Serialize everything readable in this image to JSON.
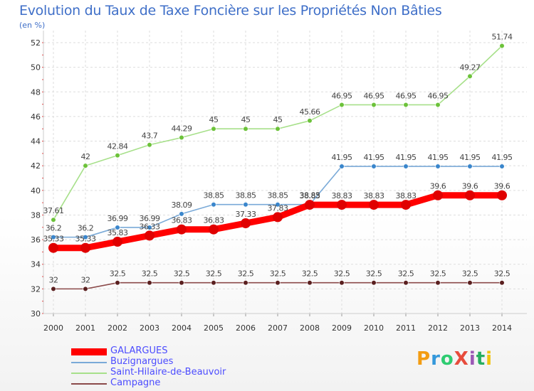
{
  "title": "Evolution du Taux de Taxe Foncière sur les Propriétés Non Bâties",
  "unit_label": "(en %)",
  "logo": {
    "text": "ProXiti",
    "letters": [
      "P",
      "r",
      "o",
      "X",
      "i",
      "t",
      "i"
    ],
    "colors": [
      "#f39c12",
      "#3498db",
      "#2ecc71",
      "#e74c3c",
      "#9b59b6",
      "#27ae60",
      "#f1c40f"
    ]
  },
  "chart_data": {
    "type": "line",
    "title": "Evolution du Taux de Taxe Foncière sur les Propriétés Non Bâties",
    "ylabel": "(en %)",
    "xlabel": "",
    "x": [
      "2000",
      "2001",
      "2002",
      "2003",
      "2004",
      "2005",
      "2006",
      "2007",
      "2008",
      "2009",
      "2010",
      "2011",
      "2012",
      "2013",
      "2014"
    ],
    "ylim": [
      30,
      52
    ],
    "yticks": [
      30,
      32,
      34,
      36,
      38,
      40,
      42,
      44,
      46,
      48,
      50,
      52
    ],
    "grid": true,
    "legend_position": "bottom-left",
    "series": [
      {
        "name": "GALARGUES",
        "color": "#ff0000",
        "marker_color": "#e00000",
        "thick": true,
        "values": [
          35.33,
          35.33,
          35.83,
          36.33,
          36.83,
          36.83,
          37.33,
          37.83,
          38.83,
          38.83,
          38.83,
          38.83,
          39.6,
          39.6,
          39.6
        ],
        "labels": [
          "35.33",
          "35.33",
          "35.83",
          "36.33",
          "36.83",
          "36.83",
          "37.33",
          "37.83",
          "38.83",
          "38.83",
          "38.83",
          "38.83",
          "39.6",
          "39.6",
          "39.6"
        ]
      },
      {
        "name": "Buzignargues",
        "color": "#7aaad8",
        "marker_color": "#3a86cc",
        "thick": false,
        "values": [
          36.2,
          36.2,
          36.99,
          36.99,
          38.09,
          38.85,
          38.85,
          38.85,
          38.85,
          41.95,
          41.95,
          41.95,
          41.95,
          41.95,
          41.95
        ],
        "labels": [
          "36.2",
          "36.2",
          "36.99",
          "36.99",
          "38.09",
          "38.85",
          "38.85",
          "38.85",
          "38.85",
          "41.95",
          "41.95",
          "41.95",
          "41.95",
          "41.95",
          "41.95"
        ]
      },
      {
        "name": "Saint-Hilaire-de-Beauvoir",
        "color": "#a7e08a",
        "marker_color": "#6cc23a",
        "thick": false,
        "values": [
          37.61,
          42,
          42.84,
          43.7,
          44.29,
          45,
          45,
          45,
          45.66,
          46.95,
          46.95,
          46.95,
          46.95,
          49.27,
          51.74
        ],
        "labels": [
          "37.61",
          "42",
          "42.84",
          "43.7",
          "44.29",
          "45",
          "45",
          "45",
          "45.66",
          "46.95",
          "46.95",
          "46.95",
          "46.95",
          "49.27",
          "51.74"
        ]
      },
      {
        "name": "Campagne",
        "color": "#8b4a4a",
        "marker_color": "#5a1f1f",
        "thick": false,
        "values": [
          32,
          32,
          32.5,
          32.5,
          32.5,
          32.5,
          32.5,
          32.5,
          32.5,
          32.5,
          32.5,
          32.5,
          32.5,
          32.5,
          32.5
        ],
        "labels": [
          "32",
          "32",
          "32.5",
          "32.5",
          "32.5",
          "32.5",
          "32.5",
          "32.5",
          "32.5",
          "32.5",
          "32.5",
          "32.5",
          "32.5",
          "32.5",
          "32.5"
        ]
      }
    ]
  }
}
